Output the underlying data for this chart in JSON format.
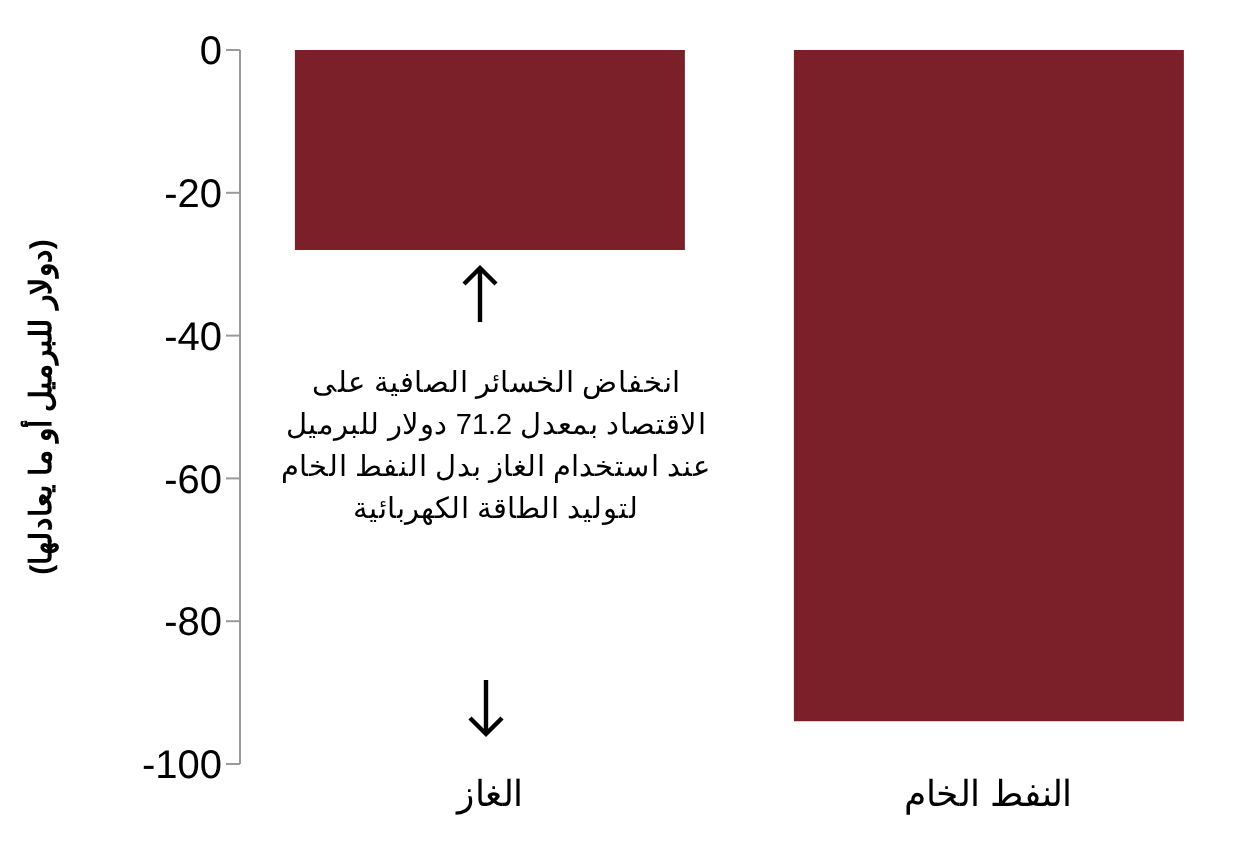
{
  "chart_data": {
    "type": "bar",
    "ylabel": "(دولار للبرميل أو ما يعادلها)",
    "categories": [
      "الغاز",
      "النفط الخام"
    ],
    "values": [
      -28,
      -94
    ],
    "color": "#7b2028",
    "ylim": [
      -100,
      0
    ],
    "yticks": [
      -100,
      -80,
      -60,
      -40,
      -20,
      0
    ],
    "grid": false,
    "legend": false,
    "annotations": [
      "انخفاض الخسائر الصافية على الاقتصاد بمعدل 71.2 دولار للبرميل عند استخدام الغاز بدل النفط الخام لتوليد الطاقة الكهربائية"
    ]
  }
}
